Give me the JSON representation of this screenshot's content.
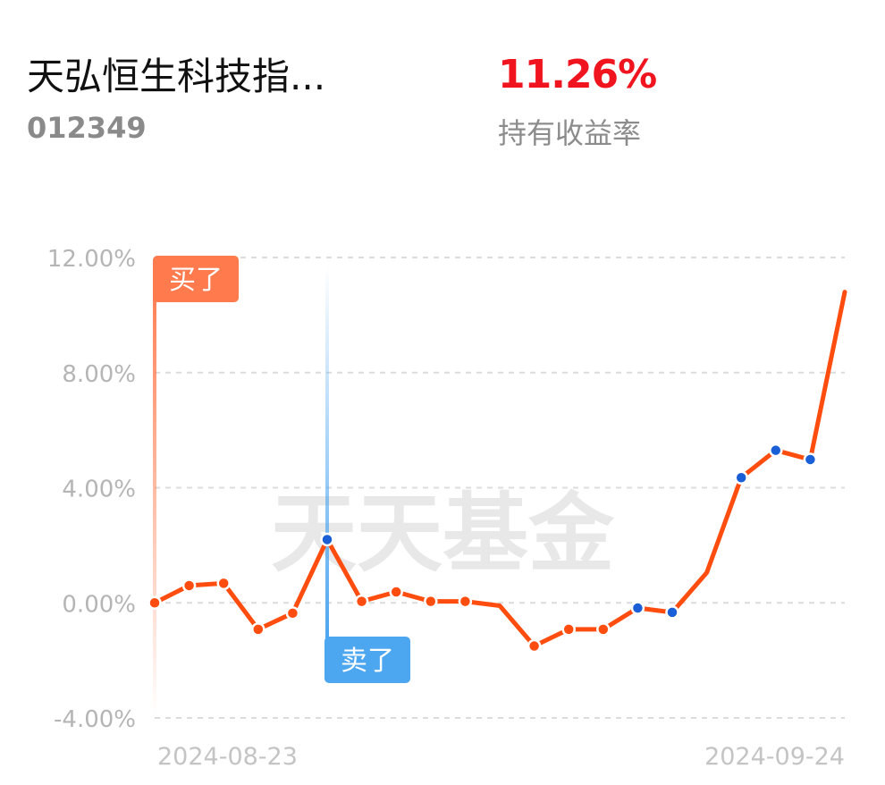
{
  "header": {
    "fund_name": "天弘恒生科技指...",
    "fund_code": "012349",
    "yield_value": "11.26%",
    "yield_label": "持有收益率"
  },
  "watermark": "天天基金",
  "colors": {
    "line": "#ff4d0f",
    "buy": "#ff7a4d",
    "sell": "#4da6f0",
    "highlight_point": "#1a5fd6",
    "yield": "#f0141e"
  },
  "chart_data": {
    "type": "line",
    "y_unit": "%",
    "ylim": [
      -4,
      12
    ],
    "y_ticks": [
      12,
      8,
      4,
      0,
      -4
    ],
    "y_tick_labels": [
      "12.00%",
      "8.00%",
      "4.00%",
      "0.00%",
      "-4.00%"
    ],
    "x_tick_labels": [
      "2024-08-23",
      "2024-09-24"
    ],
    "grid": true,
    "series": [
      {
        "values": [
          0.0,
          0.6,
          0.68,
          -0.92,
          -0.36,
          2.2,
          0.05,
          0.38,
          0.05,
          0.05,
          -0.1,
          -1.5,
          -0.92,
          -0.92,
          -0.18,
          -0.33,
          1.05,
          4.35,
          5.3,
          4.98,
          10.8
        ],
        "markers": [
          "white",
          "white",
          "white",
          "white",
          "white",
          "blue",
          "white",
          "white",
          "white",
          "white",
          "none",
          "white",
          "white",
          "white",
          "blue",
          "blue",
          "none",
          "blue",
          "blue",
          "blue",
          "none"
        ]
      }
    ],
    "annotations": [
      {
        "label": "买了",
        "index": 0
      },
      {
        "label": "卖了",
        "index": 5
      }
    ]
  }
}
